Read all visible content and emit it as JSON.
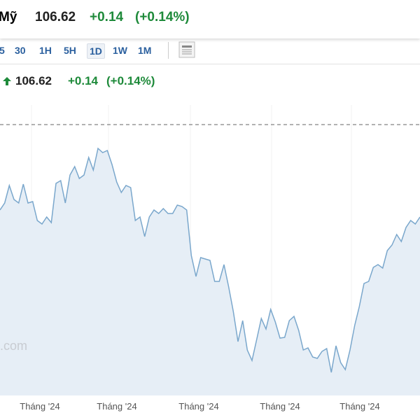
{
  "header": {
    "title": "Mỹ",
    "price": "106.62",
    "change": "+0.14",
    "change_pct": "(+0.14%)"
  },
  "toolbar": {
    "buttons": [
      "5",
      "30",
      "1H",
      "5H",
      "1D",
      "1W",
      "1M"
    ],
    "selected": "1D"
  },
  "quote": {
    "price": "106.62",
    "change": "+0.14",
    "change_pct": "(+0.14%)"
  },
  "watermark": ".com",
  "chart": {
    "type": "line",
    "color": "#7aa7cc",
    "fill": "#e6eef6",
    "x_labels": [
      "Tháng '24",
      "Tháng '24",
      "Tháng '24",
      "Tháng '24",
      "Tháng '24"
    ],
    "ylim": [
      0,
      420
    ],
    "reference_line": 387,
    "values": [
      265,
      275,
      300,
      280,
      275,
      302,
      275,
      277,
      250,
      245,
      255,
      247,
      303,
      307,
      275,
      315,
      327,
      310,
      315,
      340,
      322,
      353,
      347,
      350,
      330,
      305,
      290,
      300,
      297,
      250,
      255,
      227,
      255,
      265,
      260,
      267,
      260,
      260,
      272,
      270,
      265,
      200,
      170,
      197,
      195,
      193,
      163,
      163,
      187,
      155,
      120,
      77,
      107,
      65,
      50,
      80,
      110,
      95,
      123,
      105,
      82,
      83,
      107,
      113,
      93,
      65,
      68,
      55,
      53,
      63,
      67,
      33,
      71,
      47,
      37,
      65,
      100,
      127,
      160,
      163,
      183,
      187,
      182,
      207,
      215,
      230,
      220,
      240,
      250,
      245,
      255
    ]
  }
}
